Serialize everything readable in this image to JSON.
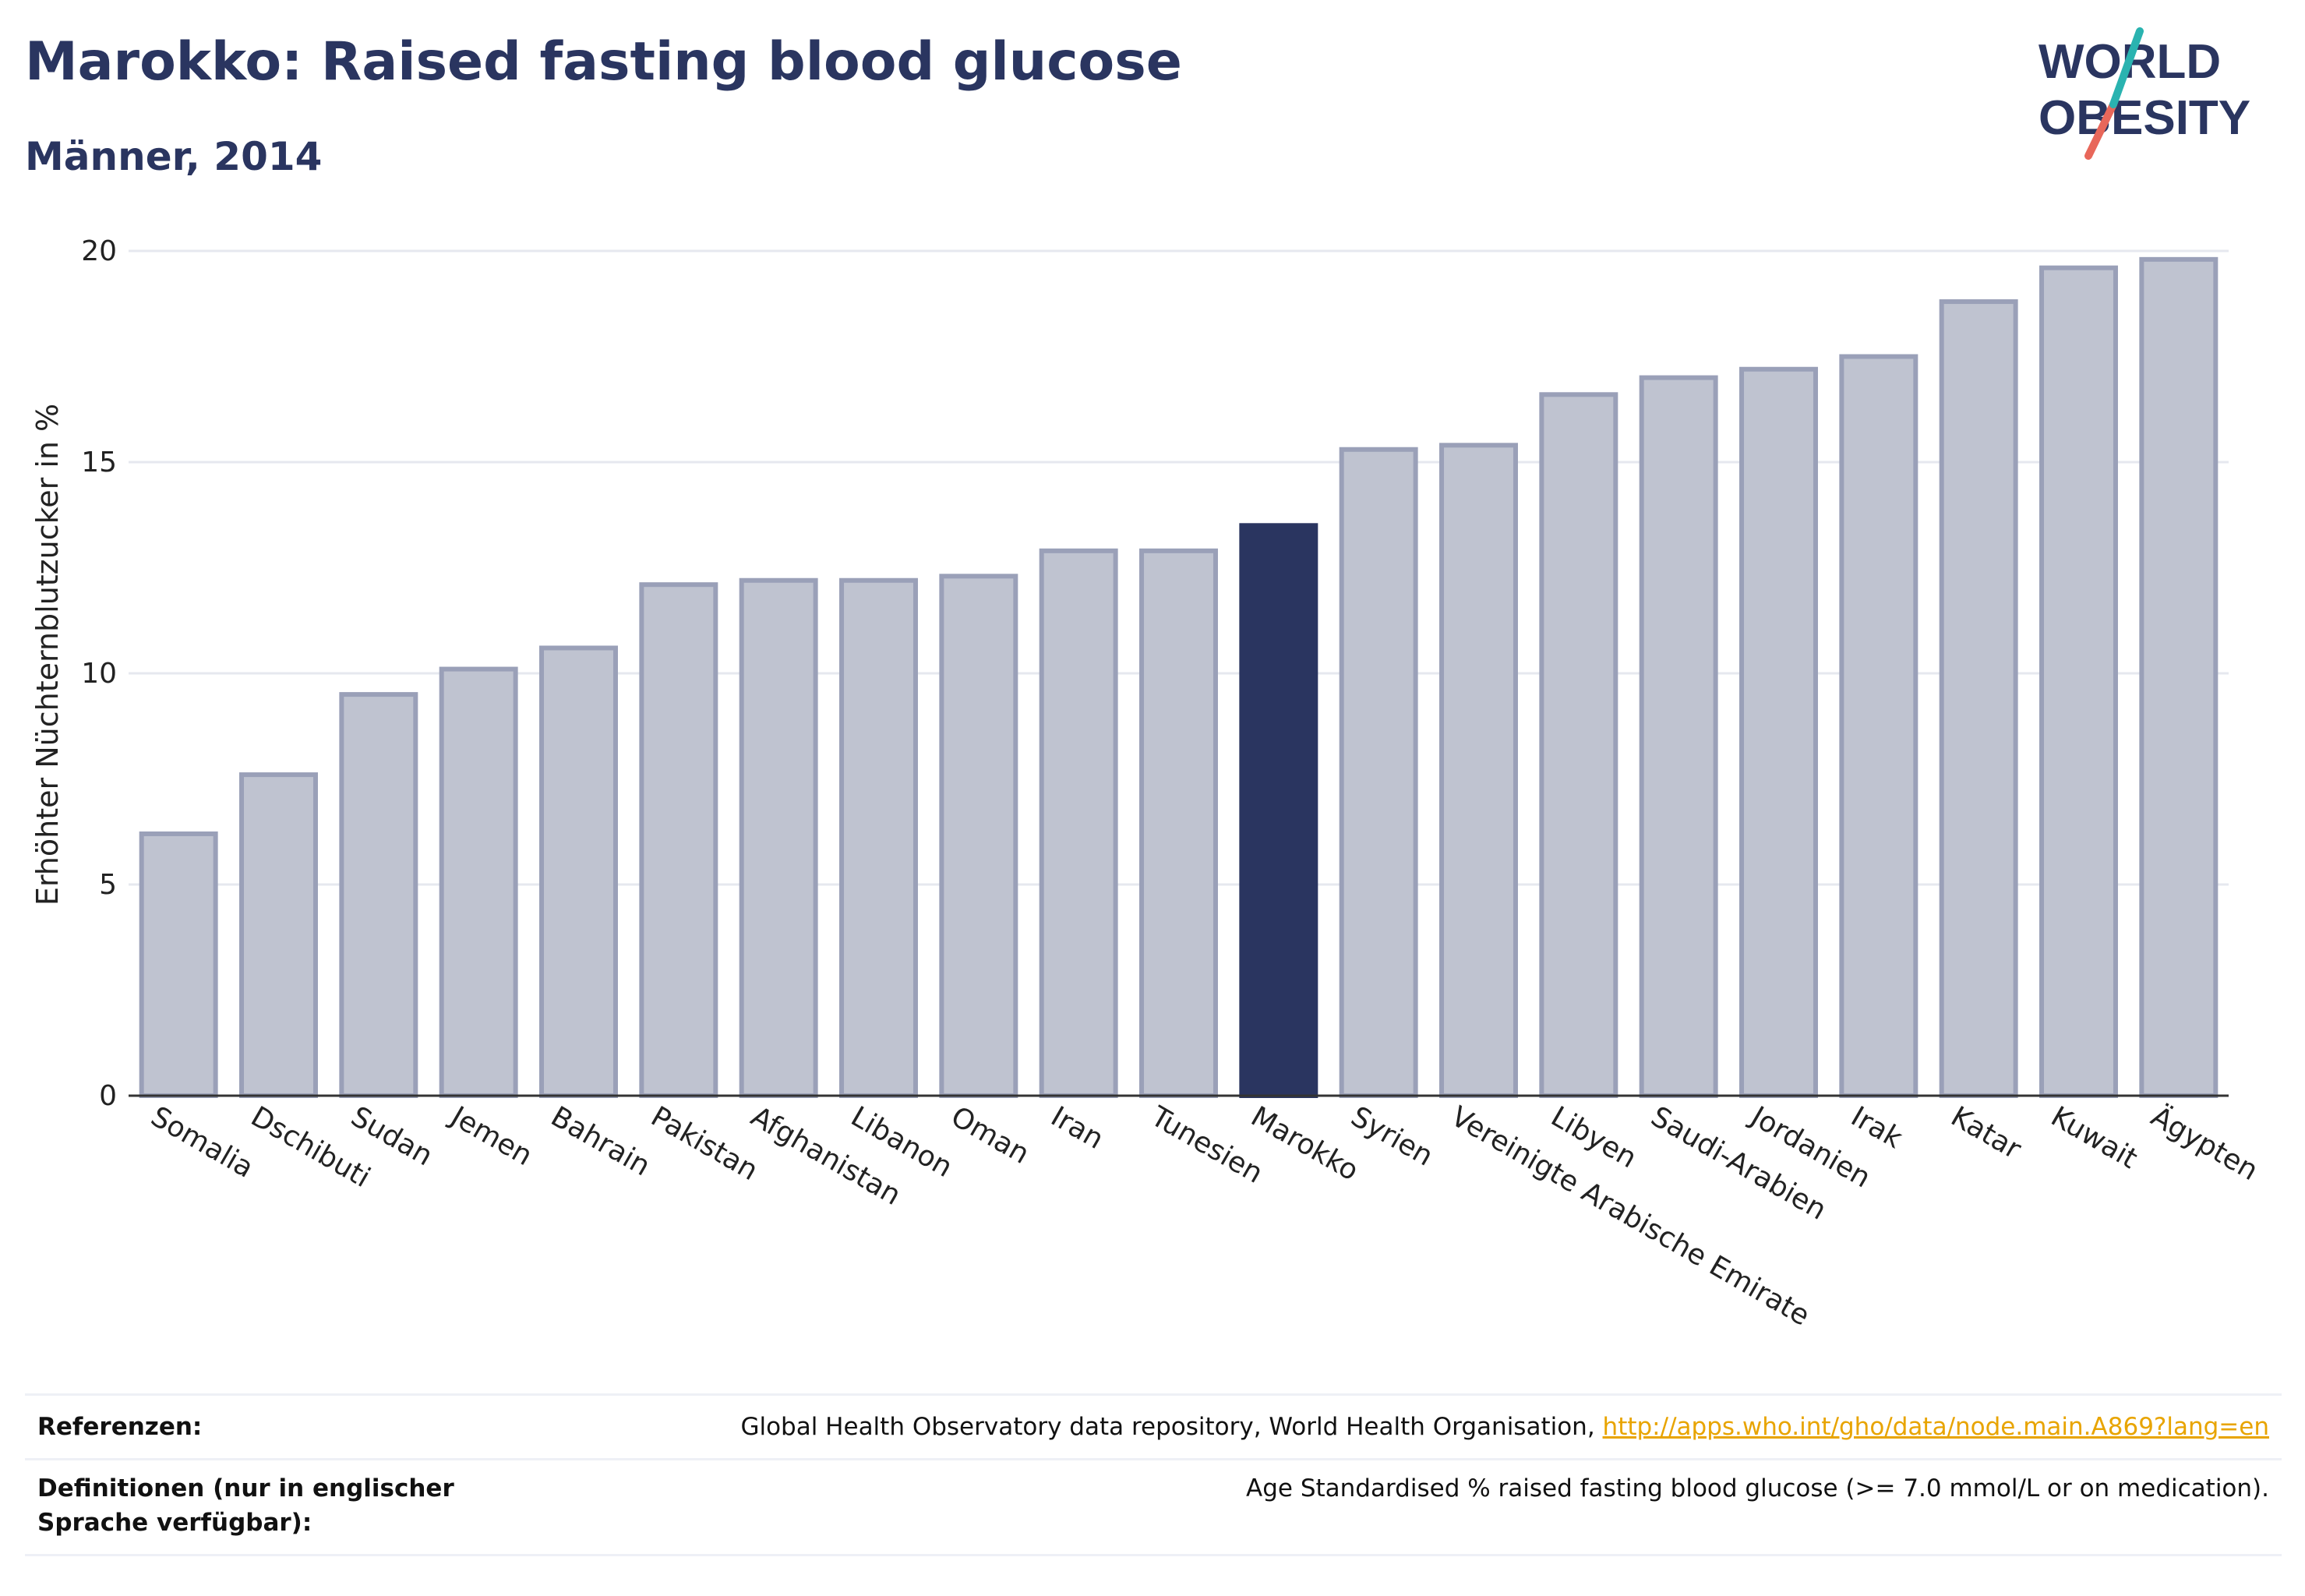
{
  "header": {
    "title": "Marokko: Raised fasting blood glucose",
    "subtitle": "Männer, 2014"
  },
  "logo": {
    "line1": "WORLD",
    "line2": "OBESITY",
    "colors": {
      "text": "#2a3560",
      "slash_teal": "#2ab3b0",
      "slash_red": "#e8675a"
    }
  },
  "colors": {
    "bar": "#bfc3d0",
    "bar_border": "#9aa0b8",
    "highlight": "#2a3560",
    "grid": "#e6e8ef",
    "axis": "#333333",
    "link": "#e8a400"
  },
  "chart_data": {
    "type": "bar",
    "title": "Marokko: Raised fasting blood glucose",
    "subtitle": "Männer, 2014",
    "xlabel": "",
    "ylabel": "Erhöhter Nüchternblutzucker in %",
    "ylim": [
      0,
      20
    ],
    "yticks": [
      0,
      5,
      10,
      15,
      20
    ],
    "grid": true,
    "highlight": "Marokko",
    "categories": [
      "Somalia",
      "Dschibuti",
      "Sudan",
      "Jemen",
      "Bahrain",
      "Pakistan",
      "Afghanistan",
      "Libanon",
      "Oman",
      "Iran",
      "Tunesien",
      "Marokko",
      "Syrien",
      "Vereinigte Arabische Emirate",
      "Libyen",
      "Saudi-Arabien",
      "Jordanien",
      "Irak",
      "Katar",
      "Kuwait",
      "Ägypten"
    ],
    "values": [
      6.2,
      7.6,
      9.5,
      10.1,
      10.6,
      12.1,
      12.2,
      12.2,
      12.3,
      12.9,
      12.9,
      13.5,
      15.3,
      15.4,
      16.6,
      17.0,
      17.2,
      17.5,
      18.8,
      19.6,
      19.8
    ]
  },
  "references": {
    "ref_label": "Referenzen:",
    "ref_text": "Global Health Observatory data repository, World Health Organisation, ",
    "ref_link": "http://apps.who.int/gho/data/node.main.A869?lang=en",
    "def_label": "Definitionen (nur in englischer Sprache verfügbar):",
    "def_text": "Age Standardised % raised fasting blood glucose (>= 7.0 mmol/L or on medication)."
  }
}
